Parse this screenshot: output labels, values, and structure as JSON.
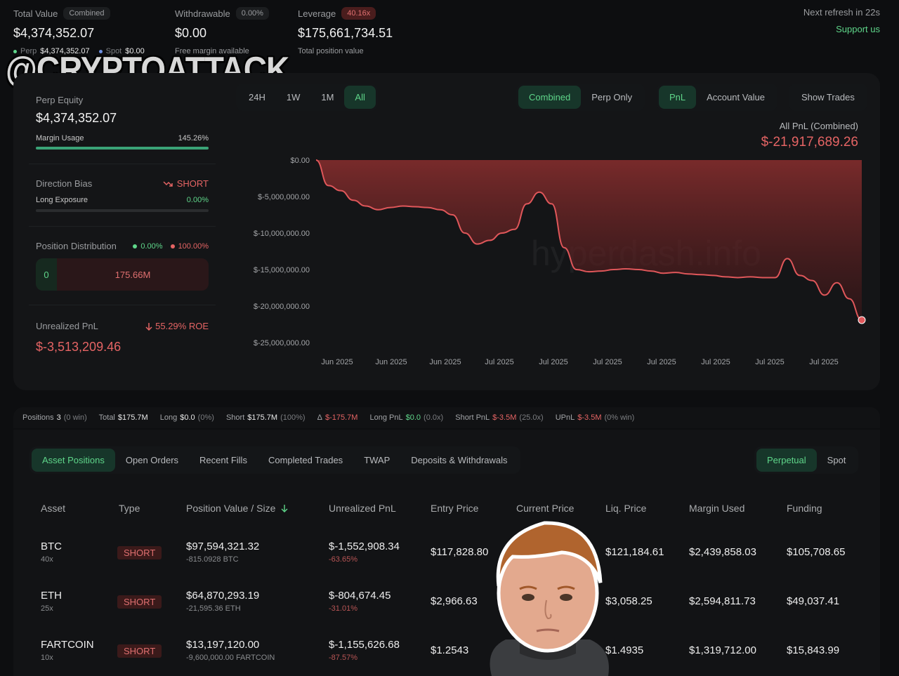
{
  "header": {
    "total_value": {
      "label": "Total Value",
      "badge": "Combined",
      "value": "$4,374,352.07"
    },
    "perp_label": "Perp",
    "perp_value": "$4,374,352.07",
    "spot_label": "Spot",
    "spot_value": "$0.00",
    "withdrawable": {
      "label": "Withdrawable",
      "badge": "0.00%",
      "value": "$0.00",
      "sub": "Free margin available"
    },
    "leverage": {
      "label": "Leverage",
      "badge": "40.16x",
      "value": "$175,661,734.51",
      "sub": "Total position value"
    },
    "refresh": "Next refresh in 22s",
    "support": "Support us",
    "watermark": "@CRYPTOATTACK"
  },
  "side": {
    "perp_equity_label": "Perp Equity",
    "perp_equity_value": "$4,374,352.07",
    "margin_usage_label": "Margin Usage",
    "margin_usage_value": "145.26%",
    "margin_usage_fill": 1.0,
    "direction_label": "Direction Bias",
    "direction_value": "SHORT",
    "long_exposure_label": "Long Exposure",
    "long_exposure_value": "0.00%",
    "long_exposure_fill": 0.0,
    "distribution_label": "Position Distribution",
    "dist_long": "0.00%",
    "dist_short": "100.00%",
    "dist_left_val": "0",
    "dist_right_val": "175.66M",
    "upnl_label": "Unrealized PnL",
    "roe": "55.29% ROE",
    "upnl_value": "$-3,513,209.46"
  },
  "chart_controls": {
    "ranges": [
      "24H",
      "1W",
      "1M",
      "All"
    ],
    "active_range": "All",
    "modes": [
      "Combined",
      "Perp Only"
    ],
    "metrics": [
      "PnL",
      "Account Value"
    ],
    "show_trades": "Show Trades",
    "pnl_title": "All PnL (Combined)",
    "pnl_value": "$-21,917,689.26",
    "watermark": "hyperdash.info"
  },
  "chart_data": {
    "type": "area",
    "yticks": [
      "$0.00",
      "$-5,000,000.00",
      "$-10,000,000.00",
      "$-15,000,000.00",
      "$-20,000,000.00",
      "$-25,000,000.00"
    ],
    "ytick_values": [
      0,
      -5000000,
      -10000000,
      -15000000,
      -20000000,
      -25000000
    ],
    "xticks": [
      "Jun 2025",
      "Jun 2025",
      "Jun 2025",
      "Jul 2025",
      "Jul 2025",
      "Jul 2025",
      "Jul 2025",
      "Jul 2025",
      "Jul 2025",
      "Jul 2025"
    ],
    "ylim": [
      -25000000,
      0
    ],
    "series": [
      {
        "values": [
          0,
          -3500000,
          -4200000,
          -5500000,
          -6300000,
          -6800000,
          -6500000,
          -6300000,
          -6400000,
          -6500000,
          -6800000,
          -7500000,
          -10000000,
          -11500000,
          -11000000,
          -10000000,
          -9500000,
          -6000000,
          -4400000,
          -6000000,
          -12000000,
          -15000000,
          -15300000,
          -15200000,
          -15000000,
          -14900000,
          -15000000,
          -15200000,
          -15500000,
          -15400000,
          -15600000,
          -15700000,
          -15800000,
          -16000000,
          -16100000,
          -16000000,
          -16100000,
          -16100000,
          -13500000,
          -15800000,
          -16500000,
          -18500000,
          -16800000,
          -19000000,
          -21917689
        ]
      }
    ]
  },
  "stats": {
    "positions_label": "Positions",
    "positions_value": "3",
    "positions_sub": "(0 win)",
    "total_label": "Total",
    "total_value": "$175.7M",
    "long_label": "Long",
    "long_value": "$0.0",
    "long_sub": "(0%)",
    "short_label": "Short",
    "short_value": "$175.7M",
    "short_sub": "(100%)",
    "delta_label": "Δ",
    "delta_value": "$-175.7M",
    "longpnl_label": "Long PnL",
    "longpnl_value": "$0.0",
    "longpnl_sub": "(0.0x)",
    "shortpnl_label": "Short PnL",
    "shortpnl_value": "$-3.5M",
    "shortpnl_sub": "(25.0x)",
    "upnl_label": "UPnL",
    "upnl_value": "$-3.5M",
    "upnl_sub": "(0% win)"
  },
  "tabs": {
    "items": [
      "Asset Positions",
      "Open Orders",
      "Recent Fills",
      "Completed Trades",
      "TWAP",
      "Deposits & Withdrawals"
    ],
    "market": [
      "Perpetual",
      "Spot"
    ]
  },
  "table": {
    "headers": [
      "Asset",
      "Type",
      "Position Value / Size",
      "Unrealized PnL",
      "Entry Price",
      "Current Price",
      "Liq. Price",
      "Margin Used",
      "Funding"
    ],
    "rows": [
      {
        "asset": "BTC",
        "lev": "40x",
        "type": "SHORT",
        "value": "$97,594,321.32",
        "size": "-815.0928 BTC",
        "upnl": "$-1,552,908.34",
        "upnl_pct": "-63.65%",
        "entry": "$117,828.80",
        "current": "",
        "liq": "$121,184.61",
        "margin": "$2,439,858.03",
        "funding": "$105,708.65"
      },
      {
        "asset": "ETH",
        "lev": "25x",
        "type": "SHORT",
        "value": "$64,870,293.19",
        "size": "-21,595.36 ETH",
        "upnl": "$-804,674.45",
        "upnl_pct": "-31.01%",
        "entry": "$2,966.63",
        "current": "",
        "liq": "$3,058.25",
        "margin": "$2,594,811.73",
        "funding": "$49,037.41"
      },
      {
        "asset": "FARTCOIN",
        "lev": "10x",
        "type": "SHORT",
        "value": "$13,197,120.00",
        "size": "-9,600,000.00 FARTCOIN",
        "upnl": "$-1,155,626.68",
        "upnl_pct": "-87.57%",
        "entry": "$1.2543",
        "current": "",
        "liq": "$1.4935",
        "margin": "$1,319,712.00",
        "funding": "$15,843.99"
      }
    ]
  }
}
